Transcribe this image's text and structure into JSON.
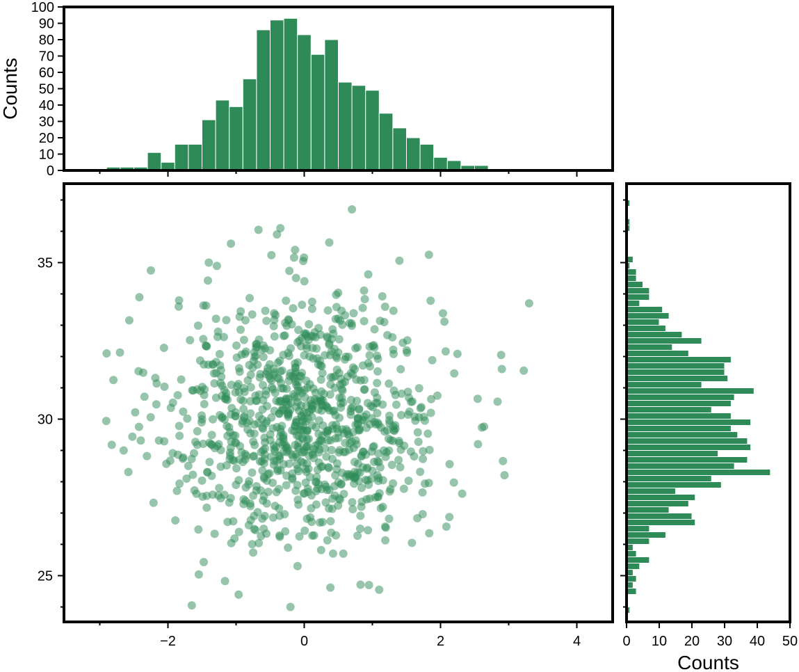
{
  "colors": {
    "accent": "#2e8b57",
    "frame": "#000000"
  },
  "chart_data": [
    {
      "type": "scatter",
      "panel": "main",
      "title": "",
      "xlabel": "",
      "ylabel": "",
      "xlim": [
        -3.5,
        4.5
      ],
      "ylim": [
        23.5,
        37.5
      ],
      "x_ticks": [
        "−2",
        "0",
        "2",
        "4"
      ],
      "y_ticks": [
        "25",
        "30",
        "35"
      ],
      "point_count": 1000,
      "x_mean": 0,
      "x_sd": 1,
      "y_mean": 30,
      "y_sd": 2,
      "grid": false,
      "points_sample": [
        {
          "x": 0.7,
          "y": 36.7
        },
        {
          "x": -0.35,
          "y": 36.1
        },
        {
          "x": -0.4,
          "y": 35.9
        },
        {
          "x": 1.83,
          "y": 35.25
        },
        {
          "x": -2.25,
          "y": 34.75
        },
        {
          "x": -1.4,
          "y": 35.0
        },
        {
          "x": 3.3,
          "y": 33.7
        },
        {
          "x": 2.9,
          "y": 31.6
        },
        {
          "x": -2.9,
          "y": 32.1
        },
        {
          "x": -2.8,
          "y": 31.25
        },
        {
          "x": -2.65,
          "y": 29.0
        },
        {
          "x": -1.65,
          "y": 24.05
        },
        {
          "x": 1.1,
          "y": 24.55
        },
        {
          "x": 0.95,
          "y": 24.7
        },
        {
          "x": 2.55,
          "y": 29.2
        }
      ]
    },
    {
      "type": "bar",
      "panel": "top-histogram",
      "orientation": "vertical",
      "ylabel": "Counts",
      "ylim": [
        0,
        100
      ],
      "y_ticks": [
        "0",
        "10",
        "20",
        "30",
        "40",
        "50",
        "60",
        "70",
        "80",
        "90",
        "100"
      ],
      "bin_start": -2.9,
      "bin_width": 0.2,
      "values": [
        2,
        2,
        2,
        11,
        5,
        16,
        16,
        31,
        43,
        39,
        56,
        86,
        92,
        93,
        83,
        71,
        80,
        54,
        52,
        49,
        35,
        26,
        20,
        16,
        8,
        6,
        3,
        3
      ]
    },
    {
      "type": "bar",
      "panel": "right-histogram",
      "orientation": "horizontal",
      "xlabel": "Counts",
      "xlim": [
        0,
        50
      ],
      "x_ticks": [
        "0",
        "10",
        "20",
        "30",
        "40",
        "50"
      ],
      "bin_start": 23.8,
      "bin_width": 0.2,
      "values": [
        1,
        0,
        0,
        3,
        2,
        3,
        2,
        4,
        7,
        3,
        2,
        7,
        12,
        7,
        21,
        20,
        13,
        19,
        21,
        15,
        29,
        26,
        44,
        33,
        37,
        28,
        38,
        37,
        34,
        32,
        38,
        32,
        26,
        32,
        33,
        39,
        23,
        31,
        30,
        30,
        32,
        19,
        14,
        23,
        17,
        12,
        10,
        13,
        11,
        4,
        7,
        7,
        5,
        3,
        3,
        1,
        2,
        0,
        0,
        0,
        0,
        1,
        1,
        0,
        0,
        1
      ]
    }
  ]
}
